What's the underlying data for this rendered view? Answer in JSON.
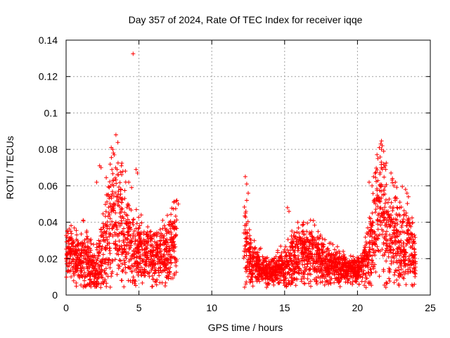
{
  "chart_data": {
    "type": "scatter",
    "title": "Day 357 of 2024, Rate Of TEC Index for receiver iqqe",
    "xlabel": "GPS time / hours",
    "ylabel": "ROTI / TECUs",
    "xlim": [
      0,
      25
    ],
    "ylim": [
      0,
      0.14
    ],
    "x_ticks": [
      0,
      5,
      10,
      15,
      20,
      25
    ],
    "x_tick_labels": [
      "0",
      "5",
      "10",
      "15",
      "20",
      "25"
    ],
    "y_ticks": [
      0,
      0.02,
      0.04,
      0.06,
      0.08,
      0.1,
      0.12,
      0.14
    ],
    "y_tick_labels": [
      "0",
      "0.02",
      "0.04",
      "0.06",
      "0.08",
      "0.1",
      "0.12",
      "0.14"
    ],
    "grid": true,
    "marker": "+",
    "series": [
      {
        "name": "ROTI",
        "color": "#ff0000",
        "profile": [
          [
            0.0,
            0.022,
            0.01
          ],
          [
            0.3,
            0.024,
            0.012
          ],
          [
            0.7,
            0.02,
            0.011
          ],
          [
            1.0,
            0.019,
            0.011
          ],
          [
            1.3,
            0.022,
            0.014
          ],
          [
            1.6,
            0.018,
            0.01
          ],
          [
            2.0,
            0.014,
            0.009
          ],
          [
            2.3,
            0.018,
            0.012
          ],
          [
            2.6,
            0.028,
            0.02
          ],
          [
            2.9,
            0.035,
            0.025
          ],
          [
            3.2,
            0.04,
            0.03
          ],
          [
            3.5,
            0.038,
            0.028
          ],
          [
            3.8,
            0.036,
            0.025
          ],
          [
            4.1,
            0.032,
            0.022
          ],
          [
            4.5,
            0.028,
            0.016
          ],
          [
            5.0,
            0.024,
            0.012
          ],
          [
            5.5,
            0.023,
            0.011
          ],
          [
            6.0,
            0.022,
            0.011
          ],
          [
            6.5,
            0.022,
            0.012
          ],
          [
            7.0,
            0.024,
            0.013
          ],
          [
            7.3,
            0.03,
            0.018
          ],
          [
            7.6,
            0.035,
            0.018
          ],
          [
            12.2,
            0.03,
            0.02
          ],
          [
            12.5,
            0.022,
            0.012
          ],
          [
            13.0,
            0.016,
            0.008
          ],
          [
            13.5,
            0.014,
            0.006
          ],
          [
            14.0,
            0.013,
            0.005
          ],
          [
            14.5,
            0.014,
            0.006
          ],
          [
            15.0,
            0.016,
            0.01
          ],
          [
            15.5,
            0.018,
            0.012
          ],
          [
            16.0,
            0.022,
            0.013
          ],
          [
            16.5,
            0.024,
            0.013
          ],
          [
            17.0,
            0.022,
            0.012
          ],
          [
            17.5,
            0.019,
            0.01
          ],
          [
            18.0,
            0.017,
            0.008
          ],
          [
            18.5,
            0.016,
            0.008
          ],
          [
            19.0,
            0.015,
            0.007
          ],
          [
            19.5,
            0.014,
            0.006
          ],
          [
            20.0,
            0.014,
            0.005
          ],
          [
            20.3,
            0.015,
            0.006
          ],
          [
            20.6,
            0.02,
            0.012
          ],
          [
            21.0,
            0.03,
            0.02
          ],
          [
            21.3,
            0.045,
            0.025
          ],
          [
            21.6,
            0.055,
            0.028
          ],
          [
            21.9,
            0.04,
            0.025
          ],
          [
            22.2,
            0.03,
            0.02
          ],
          [
            22.5,
            0.035,
            0.022
          ],
          [
            22.8,
            0.028,
            0.018
          ],
          [
            23.1,
            0.03,
            0.018
          ],
          [
            23.4,
            0.028,
            0.016
          ],
          [
            23.7,
            0.025,
            0.014
          ],
          [
            24.0,
            0.02,
            0.01
          ]
        ],
        "extra_points": [
          [
            4.6,
            0.1325
          ],
          [
            3.1,
            0.081
          ],
          [
            3.2,
            0.08
          ],
          [
            3.3,
            0.077
          ],
          [
            3.25,
            0.078
          ],
          [
            3.5,
            0.069
          ],
          [
            3.6,
            0.066
          ],
          [
            3.8,
            0.071
          ],
          [
            3.9,
            0.068
          ],
          [
            4.8,
            0.069
          ],
          [
            4.9,
            0.067
          ],
          [
            2.3,
            0.071
          ],
          [
            2.4,
            0.07
          ],
          [
            2.1,
            0.062
          ],
          [
            4.3,
            0.062
          ],
          [
            4.5,
            0.059
          ],
          [
            12.3,
            0.065
          ],
          [
            12.4,
            0.061
          ],
          [
            12.5,
            0.056
          ],
          [
            12.4,
            0.052
          ],
          [
            21.5,
            0.081
          ],
          [
            21.6,
            0.083
          ],
          [
            21.7,
            0.082
          ],
          [
            21.8,
            0.079
          ],
          [
            21.65,
            0.08
          ],
          [
            21.4,
            0.075
          ],
          [
            21.9,
            0.071
          ],
          [
            22.3,
            0.067
          ],
          [
            22.4,
            0.064
          ],
          [
            22.6,
            0.062
          ],
          [
            22.5,
            0.06
          ],
          [
            23.3,
            0.058
          ],
          [
            23.4,
            0.056
          ],
          [
            23.5,
            0.054
          ],
          [
            20.8,
            0.062
          ],
          [
            21.0,
            0.06
          ],
          [
            21.1,
            0.065
          ],
          [
            7.4,
            0.051
          ],
          [
            7.6,
            0.052
          ],
          [
            7.7,
            0.05
          ],
          [
            16.3,
            0.04
          ],
          [
            15.2,
            0.048
          ],
          [
            15.3,
            0.046
          ]
        ]
      }
    ]
  }
}
